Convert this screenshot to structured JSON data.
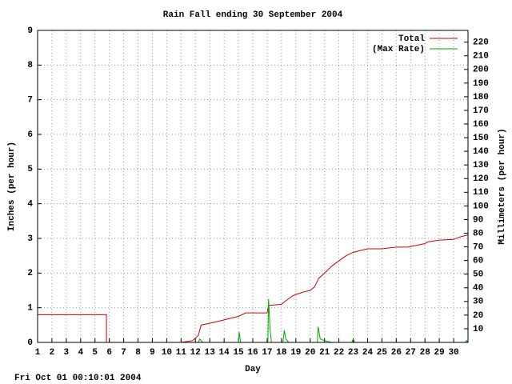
{
  "chart_data": {
    "type": "line",
    "title": "Rain Fall ending 30 September 2004",
    "x_label": "Day",
    "y_label": "Inches (per hour)",
    "y2_label": "Millimeters (per hour)",
    "footer": "Fri Oct 01 00:10:01 2004",
    "xlim": [
      1,
      31
    ],
    "xticks": [
      1,
      2,
      3,
      4,
      5,
      6,
      7,
      8,
      9,
      10,
      11,
      12,
      13,
      14,
      15,
      16,
      17,
      18,
      19,
      20,
      21,
      22,
      23,
      24,
      25,
      26,
      27,
      28,
      29,
      30
    ],
    "ylim": [
      0,
      9
    ],
    "yticks": [
      0,
      1,
      2,
      3,
      4,
      5,
      6,
      7,
      8,
      9
    ],
    "y2lim": [
      0,
      228.6
    ],
    "y2ticks": [
      10,
      20,
      30,
      40,
      50,
      60,
      70,
      80,
      90,
      100,
      110,
      120,
      130,
      140,
      150,
      160,
      170,
      180,
      190,
      200,
      210,
      220
    ],
    "grid": true,
    "legend": "top-right",
    "series": [
      {
        "name": "Total",
        "color": "#cc0000",
        "x": [
          1,
          5.8,
          5.8,
          11,
          11.8,
          12.2,
          12.4,
          13,
          13.5,
          14,
          14.5,
          15,
          15.5,
          16,
          17,
          17.1,
          17.2,
          18,
          18.3,
          18.8,
          19.5,
          20,
          20.3,
          20.6,
          21,
          21.5,
          22,
          22.5,
          23,
          24,
          25,
          26,
          26.8,
          28,
          28.2,
          29,
          30,
          30.5,
          31
        ],
        "values": [
          0.8,
          0.8,
          0,
          0,
          0.05,
          0.2,
          0.5,
          0.55,
          0.6,
          0.65,
          0.7,
          0.75,
          0.85,
          0.85,
          0.85,
          1.07,
          1.07,
          1.1,
          1.2,
          1.35,
          1.45,
          1.5,
          1.6,
          1.85,
          2.0,
          2.2,
          2.35,
          2.5,
          2.6,
          2.7,
          2.7,
          2.75,
          2.75,
          2.85,
          2.9,
          2.95,
          2.97,
          3.05,
          3.1
        ]
      },
      {
        "name": "(Max Rate)",
        "color": "#00aa00",
        "x": [
          11,
          12.2,
          12.3,
          12.5,
          15,
          15.05,
          15.15,
          17.05,
          17.1,
          17.2,
          17.3,
          18.1,
          18.2,
          18.3,
          18.5,
          20.5,
          20.55,
          20.7,
          21,
          21.5,
          22.9,
          23,
          23.1,
          30.8,
          30.9,
          31
        ],
        "values": [
          0,
          0,
          0.1,
          0,
          0,
          0.3,
          0,
          0,
          1.25,
          0.4,
          0,
          0,
          0.35,
          0.1,
          0,
          0,
          0.45,
          0.1,
          0.05,
          0,
          0,
          0.1,
          0,
          0,
          0.05,
          0
        ]
      }
    ]
  }
}
